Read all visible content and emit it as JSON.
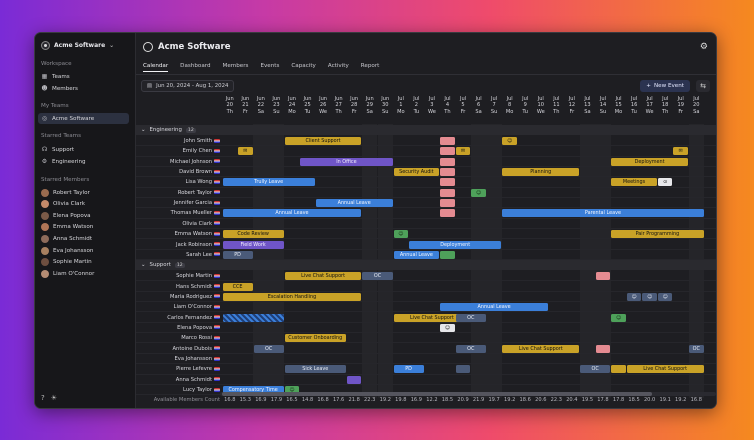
{
  "sidebar": {
    "org_name": "Acme Software",
    "workspace_label": "Workspace",
    "workspace_items": [
      {
        "label": "Teams",
        "icon": "grid-icon"
      },
      {
        "label": "Members",
        "icon": "users-icon"
      }
    ],
    "my_teams_label": "My Teams",
    "my_teams": [
      {
        "label": "Acme Software",
        "icon": "logo-icon"
      }
    ],
    "starred_teams_label": "Starred Teams",
    "starred_teams": [
      {
        "label": "Support",
        "icon": "headset-icon"
      },
      {
        "label": "Engineering",
        "icon": "gear-icon"
      }
    ],
    "starred_members_label": "Starred Members",
    "starred_members": [
      "Robert Taylor",
      "Olivia Clark",
      "Elena Popova",
      "Emma Watson",
      "Anna Schmidt",
      "Eva Johansson",
      "Sophie Martin",
      "Liam O'Connor"
    ]
  },
  "header": {
    "title": "Acme Software",
    "tabs": [
      "Calendar",
      "Dashboard",
      "Members",
      "Events",
      "Capacity",
      "Activity",
      "Report"
    ],
    "active_tab": "Calendar",
    "date_range": "Jun 20, 2024 - Aug 1, 2024",
    "new_event_label": "New Event"
  },
  "calendar": {
    "months": [
      "Jun",
      "Jun",
      "Jun",
      "Jun",
      "Jun",
      "Jun",
      "Jun",
      "Jun",
      "Jun",
      "Jun",
      "Jun",
      "Jul",
      "Jul",
      "Jul",
      "Jul",
      "Jul",
      "Jul",
      "Jul",
      "Jul",
      "Jul",
      "Jul",
      "Jul",
      "Jul",
      "Jul",
      "Jul",
      "Jul",
      "Jul",
      "Jul",
      "Jul",
      "Jul",
      "Jul"
    ],
    "days": [
      "20",
      "21",
      "22",
      "23",
      "24",
      "25",
      "26",
      "27",
      "28",
      "29",
      "30",
      "1",
      "2",
      "3",
      "4",
      "5",
      "6",
      "7",
      "8",
      "9",
      "10",
      "11",
      "12",
      "13",
      "14",
      "15",
      "16",
      "17",
      "18",
      "19",
      "20"
    ],
    "weekdays": [
      "Th",
      "Fr",
      "Sa",
      "Su",
      "Mo",
      "Tu",
      "We",
      "Th",
      "Fr",
      "Sa",
      "Su",
      "Mo",
      "Tu",
      "We",
      "Th",
      "Fr",
      "Sa",
      "Su",
      "Mo",
      "Tu",
      "We",
      "Th",
      "Fr",
      "Sa",
      "Su",
      "Mo",
      "Tu",
      "We",
      "Th",
      "Fr",
      "Sa"
    ],
    "groups": [
      {
        "name": "Engineering",
        "count": "12",
        "members": [
          {
            "name": "John Smith",
            "events": [
              {
                "label": "Client Support",
                "color": "yellow",
                "start": 4,
                "span": 5
              },
              {
                "label": "",
                "color": "pink",
                "start": 14,
                "span": 1
              },
              {
                "label": "☺",
                "color": "yellow",
                "start": 18,
                "span": 1
              }
            ]
          },
          {
            "name": "Emily Chen",
            "events": [
              {
                "label": "✉",
                "color": "yellow",
                "start": 1,
                "span": 1
              },
              {
                "label": "",
                "color": "pink",
                "start": 14,
                "span": 1
              },
              {
                "label": "✉",
                "color": "yellow",
                "start": 15,
                "span": 1
              },
              {
                "label": "✉",
                "color": "yellow",
                "start": 29,
                "span": 1
              }
            ]
          },
          {
            "name": "Michael Johnson",
            "events": [
              {
                "label": "In Office",
                "color": "purple",
                "start": 5,
                "span": 6
              },
              {
                "label": "",
                "color": "pink",
                "start": 14,
                "span": 1
              },
              {
                "label": "Deployment",
                "color": "yellow",
                "start": 25,
                "span": 5
              }
            ]
          },
          {
            "name": "David Brown",
            "events": [
              {
                "label": "Security Audit",
                "color": "yellow",
                "start": 11,
                "span": 3
              },
              {
                "label": "",
                "color": "pink",
                "start": 14,
                "span": 1
              },
              {
                "label": "Planning",
                "color": "olive",
                "start": 18,
                "span": 5
              }
            ]
          },
          {
            "name": "Lisa Wong",
            "events": [
              {
                "label": "Trully Leave",
                "color": "blue",
                "start": 0,
                "span": 6
              },
              {
                "label": "",
                "color": "pink",
                "start": 14,
                "span": 1
              },
              {
                "label": "Meetings",
                "color": "yellow",
                "start": 25,
                "span": 3
              },
              {
                "label": "⊙",
                "color": "white",
                "start": 28,
                "span": 1
              }
            ]
          },
          {
            "name": "Robert Taylor",
            "events": [
              {
                "label": "",
                "color": "pink",
                "start": 14,
                "span": 1
              },
              {
                "label": "☺",
                "color": "green",
                "start": 16,
                "span": 1
              }
            ]
          },
          {
            "name": "Jennifer Garcia",
            "events": [
              {
                "label": "Annual Leave",
                "color": "blue",
                "start": 6,
                "span": 5
              },
              {
                "label": "",
                "color": "pink",
                "start": 14,
                "span": 1
              }
            ]
          },
          {
            "name": "Thomas Mueller",
            "events": [
              {
                "label": "Annual Leave",
                "color": "blue",
                "start": 0,
                "span": 9
              },
              {
                "label": "",
                "color": "pink",
                "start": 14,
                "span": 1
              },
              {
                "label": "Parental Leave",
                "color": "blue",
                "start": 18,
                "span": 13
              }
            ]
          },
          {
            "name": "Olivia Clark",
            "events": []
          },
          {
            "name": "Emma Watson",
            "events": [
              {
                "label": "Code Review",
                "color": "yellow",
                "start": 0,
                "span": 4
              },
              {
                "label": "☺",
                "color": "green",
                "start": 11,
                "span": 1
              },
              {
                "label": "Pair Programming",
                "color": "yellow",
                "start": 25,
                "span": 7
              }
            ]
          },
          {
            "name": "Jack Robinson",
            "events": [
              {
                "label": "Field Work",
                "color": "purple",
                "start": 0,
                "span": 4
              },
              {
                "label": "Deployment",
                "color": "blue",
                "start": 12,
                "span": 6
              }
            ]
          },
          {
            "name": "Sarah Lee",
            "events": [
              {
                "label": "PD",
                "color": "slate",
                "start": 0,
                "span": 2
              },
              {
                "label": "Annual Leave",
                "color": "blue",
                "start": 11,
                "span": 3
              },
              {
                "label": "",
                "color": "green",
                "start": 14,
                "span": 1
              }
            ]
          }
        ]
      },
      {
        "name": "Support",
        "count": "12",
        "members": [
          {
            "name": "Sophie Martin",
            "events": [
              {
                "label": "Live Chat Support",
                "color": "yellow",
                "start": 4,
                "span": 5
              },
              {
                "label": "OC",
                "color": "slate",
                "start": 9,
                "span": 2
              },
              {
                "label": "",
                "color": "pink",
                "start": 24,
                "span": 1
              }
            ]
          },
          {
            "name": "Hans Schmidt",
            "events": [
              {
                "label": "CCE",
                "color": "yellow",
                "start": 0,
                "span": 2
              }
            ]
          },
          {
            "name": "Maria Rodriguez",
            "events": [
              {
                "label": "Escalation Handling",
                "color": "yellow",
                "start": 0,
                "span": 9
              },
              {
                "label": "☺",
                "color": "slate",
                "start": 26,
                "span": 1
              },
              {
                "label": "☺",
                "color": "slate",
                "start": 27,
                "span": 1
              },
              {
                "label": "☺",
                "color": "slate",
                "start": 28,
                "span": 1
              }
            ]
          },
          {
            "name": "Liam O'Connor",
            "events": [
              {
                "label": "Annual Leave",
                "color": "blue",
                "start": 14,
                "span": 7
              }
            ]
          },
          {
            "name": "Carlos Fernandez",
            "events": [
              {
                "label": "",
                "color": "stripe",
                "start": 0,
                "span": 4
              },
              {
                "label": "Live Chat Support",
                "color": "yellow",
                "start": 11,
                "span": 5
              },
              {
                "label": "OC",
                "color": "slate",
                "start": 15,
                "span": 2
              },
              {
                "label": "☺",
                "color": "green",
                "start": 25,
                "span": 1
              }
            ]
          },
          {
            "name": "Elena Popova",
            "events": [
              {
                "label": "☺",
                "color": "white",
                "start": 14,
                "span": 1
              }
            ]
          },
          {
            "name": "Marco Rossi",
            "events": [
              {
                "label": "Customer Onboarding",
                "color": "yellow",
                "start": 4,
                "span": 4
              }
            ]
          },
          {
            "name": "Antoine Dubois",
            "events": [
              {
                "label": "OC",
                "color": "slate",
                "start": 2,
                "span": 2
              },
              {
                "label": "OC",
                "color": "slate",
                "start": 15,
                "span": 2
              },
              {
                "label": "Live Chat Support",
                "color": "yellow",
                "start": 18,
                "span": 5
              },
              {
                "label": "",
                "color": "pink",
                "start": 24,
                "span": 1
              },
              {
                "label": "OC",
                "color": "slate",
                "start": 30,
                "span": 2
              }
            ]
          },
          {
            "name": "Eva Johansson",
            "events": []
          },
          {
            "name": "Pierre Lefevre",
            "events": [
              {
                "label": "Sick Leave",
                "color": "slate",
                "start": 4,
                "span": 4
              },
              {
                "label": "PD",
                "color": "blue",
                "start": 11,
                "span": 2
              },
              {
                "label": "",
                "color": "slate",
                "start": 15,
                "span": 1
              },
              {
                "label": "OC",
                "color": "slate",
                "start": 23,
                "span": 2
              },
              {
                "label": "",
                "color": "yellow",
                "start": 25,
                "span": 1
              },
              {
                "label": "Live Chat Support",
                "color": "yellow",
                "start": 26,
                "span": 6
              }
            ]
          },
          {
            "name": "Anna Schmidt",
            "events": [
              {
                "label": "",
                "color": "purple",
                "start": 8,
                "span": 1
              }
            ]
          },
          {
            "name": "Lucy Taylor",
            "events": [
              {
                "label": "Compensatory Time",
                "color": "blue",
                "start": 0,
                "span": 4
              },
              {
                "label": "☺",
                "color": "green",
                "start": 4,
                "span": 1
              }
            ]
          }
        ]
      }
    ],
    "footer_label": "Available Members Count",
    "footer_values": [
      "16.8",
      "15.3",
      "16.9",
      "17.9",
      "16.5",
      "14.8",
      "16.8",
      "17.6",
      "21.8",
      "22.3",
      "19.2",
      "19.8",
      "16.9",
      "12.2",
      "18.5",
      "20.9",
      "21.9",
      "19.7",
      "19.2",
      "18.6",
      "20.6",
      "22.3",
      "20.4",
      "19.5",
      "17.8",
      "17.8",
      "18.5",
      "20.0",
      "19.1",
      "19.2",
      "16.8"
    ]
  }
}
